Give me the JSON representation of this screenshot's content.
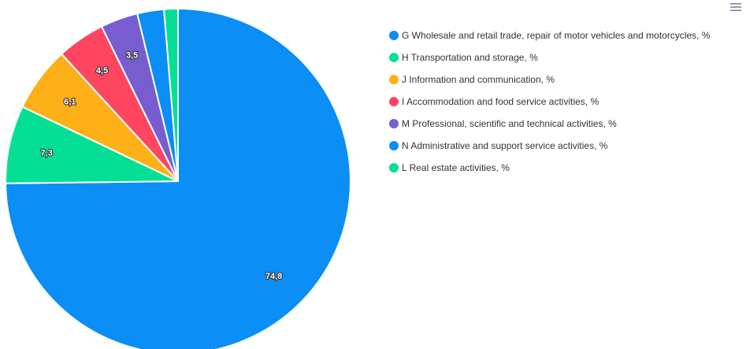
{
  "chart_data": {
    "type": "pie",
    "title": "",
    "start_angle_deg": 0,
    "slices": [
      {
        "name": "G Wholesale and retail trade, repair of motor vehicles and motorcycles, %",
        "value": 74.8,
        "label": "74,8",
        "color": "#0b8ef5"
      },
      {
        "name": "H Transportation and storage, %",
        "value": 7.3,
        "label": "7,3",
        "color": "#05df95"
      },
      {
        "name": "J Information and communication, %",
        "value": 6.1,
        "label": "6,1",
        "color": "#feb019"
      },
      {
        "name": "I Accommodation and food service activities, %",
        "value": 4.5,
        "label": "4,5",
        "color": "#ff4560"
      },
      {
        "name": "M Professional, scientific and technical activities, %",
        "value": 3.5,
        "label": "3,5",
        "color": "#775dd0"
      },
      {
        "name": "N Administrative and support service activities, %",
        "value": 2.5,
        "label": "",
        "color": "#0b8ef5"
      },
      {
        "name": "L Real estate activities, %",
        "value": 1.3,
        "label": "",
        "color": "#05df95"
      }
    ],
    "legend_position": "top-right"
  },
  "toolbar": {
    "menu_icon": "hamburger-menu-icon"
  }
}
